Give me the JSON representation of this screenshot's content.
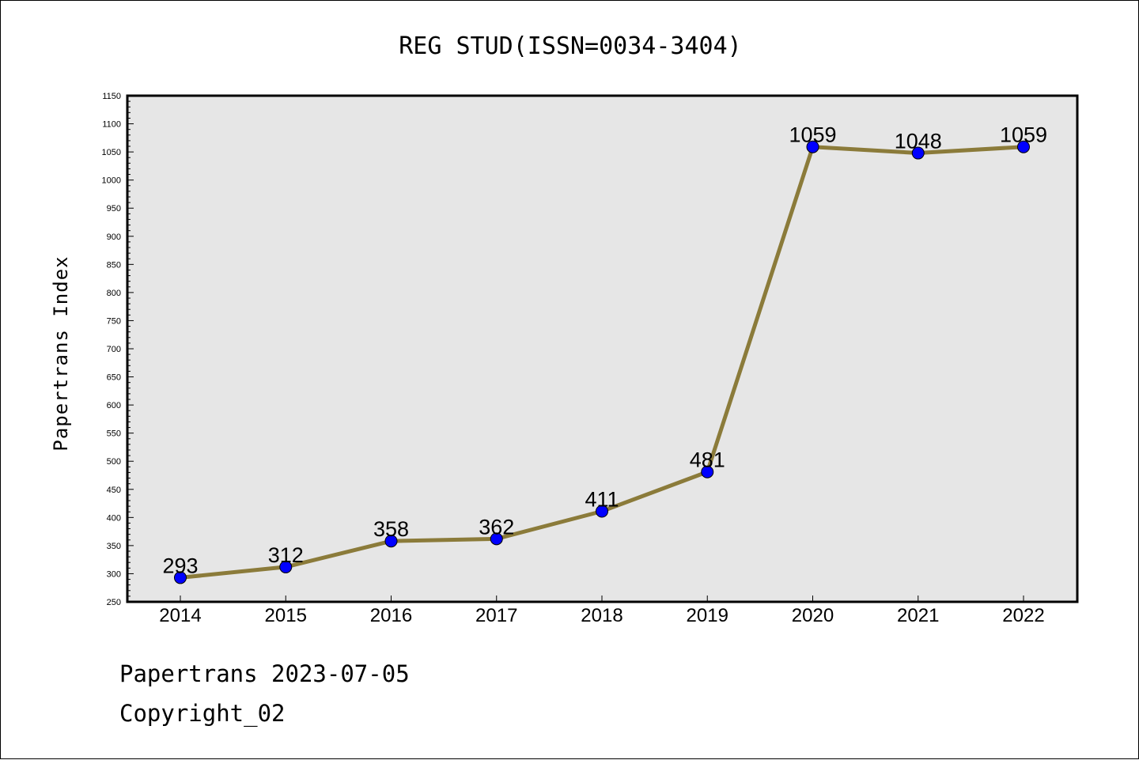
{
  "chart_data": {
    "type": "line",
    "title": "REG STUD(ISSN=0034-3404)",
    "ylabel": "Papertrans Index",
    "xlabel": "",
    "categories": [
      "2014",
      "2015",
      "2016",
      "2017",
      "2018",
      "2019",
      "2020",
      "2021",
      "2022"
    ],
    "values": [
      293,
      312,
      358,
      362,
      411,
      481,
      1059,
      1048,
      1059
    ],
    "data_labels": [
      "293",
      "312",
      "358",
      "362",
      "411",
      "481",
      "1059",
      "1048",
      "1059"
    ],
    "ylim": [
      250,
      1150
    ],
    "y_ticks": [
      "250",
      "300",
      "350",
      "400",
      "450",
      "500",
      "550",
      "600",
      "650",
      "700",
      "750",
      "800",
      "850",
      "900",
      "950",
      "1000",
      "1050",
      "1100",
      "1150"
    ],
    "grid": false,
    "legend": "none",
    "colors": {
      "line": "#8b7b3a",
      "marker": "#0000ff",
      "plot_background": "#e6e6e6"
    }
  },
  "footer": {
    "line1": "Papertrans 2023-07-05",
    "line2": "Copyright_02"
  }
}
